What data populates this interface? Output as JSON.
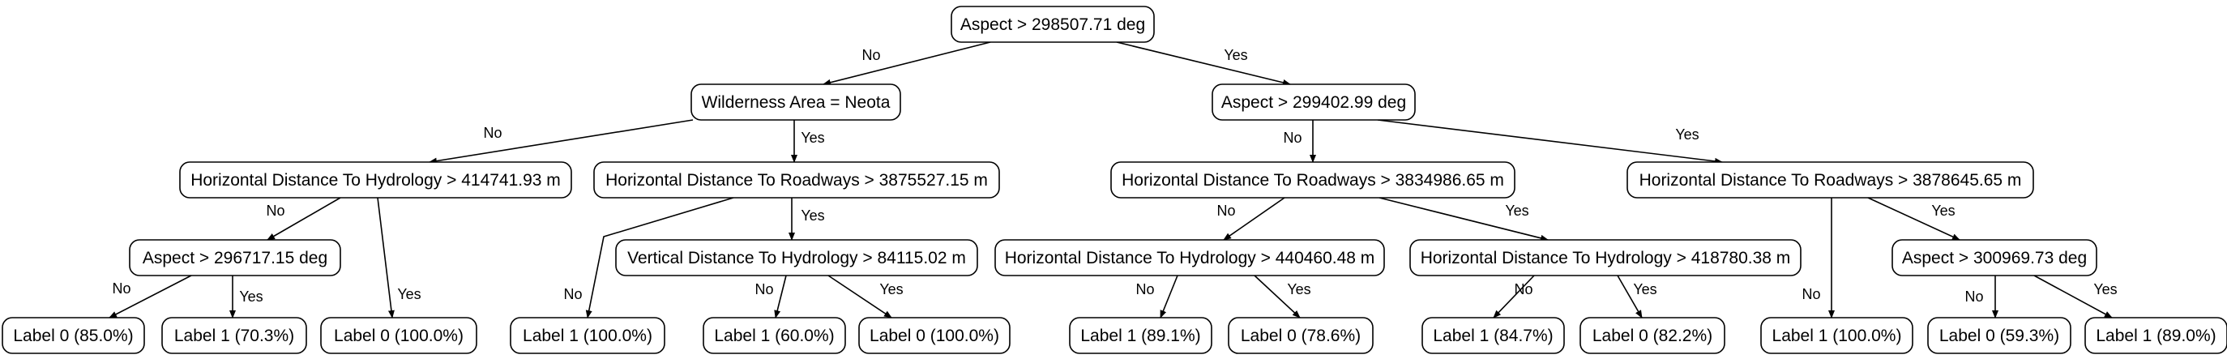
{
  "tree": {
    "nodes": [
      {
        "id": "root",
        "text": "Aspect > 298507.71 deg"
      },
      {
        "id": "l",
        "text": "Wilderness Area = Neota"
      },
      {
        "id": "r",
        "text": "Aspect > 299402.99 deg"
      },
      {
        "id": "ll",
        "text": "Horizontal Distance To Hydrology > 414741.93 m"
      },
      {
        "id": "lr",
        "text": "Horizontal Distance To Roadways > 3875527.15 m"
      },
      {
        "id": "rl",
        "text": "Horizontal Distance To Roadways > 3834986.65 m"
      },
      {
        "id": "rr",
        "text": "Horizontal Distance To Roadways > 3878645.65 m"
      },
      {
        "id": "lll",
        "text": "Aspect > 296717.15 deg"
      },
      {
        "id": "lrr",
        "text": "Vertical Distance To Hydrology > 84115.02 m"
      },
      {
        "id": "rll",
        "text": "Horizontal Distance To Hydrology > 440460.48 m"
      },
      {
        "id": "rlr",
        "text": "Horizontal Distance To Hydrology > 418780.38 m"
      },
      {
        "id": "rrr",
        "text": "Aspect > 300969.73 deg"
      },
      {
        "id": "leaf1",
        "text": "Label 0 (85.0%)"
      },
      {
        "id": "leaf2",
        "text": "Label 1 (70.3%)"
      },
      {
        "id": "leaf3",
        "text": "Label 0 (100.0%)"
      },
      {
        "id": "leaf4",
        "text": "Label 1 (100.0%)"
      },
      {
        "id": "leaf5",
        "text": "Label 1 (60.0%)"
      },
      {
        "id": "leaf6",
        "text": "Label 0 (100.0%)"
      },
      {
        "id": "leaf7",
        "text": "Label 1 (89.1%)"
      },
      {
        "id": "leaf8",
        "text": "Label 0 (78.6%)"
      },
      {
        "id": "leaf9",
        "text": "Label 1 (84.7%)"
      },
      {
        "id": "leaf10",
        "text": "Label 0 (82.2%)"
      },
      {
        "id": "leaf11",
        "text": "Label 1 (100.0%)"
      },
      {
        "id": "leaf12",
        "text": "Label 0 (59.3%)"
      },
      {
        "id": "leaf13",
        "text": "Label 1 (89.0%)"
      }
    ],
    "edges": [
      {
        "from": "root",
        "to": "l",
        "label": "No"
      },
      {
        "from": "root",
        "to": "r",
        "label": "Yes"
      },
      {
        "from": "l",
        "to": "ll",
        "label": "No"
      },
      {
        "from": "l",
        "to": "lr",
        "label": "Yes"
      },
      {
        "from": "r",
        "to": "rl",
        "label": "No"
      },
      {
        "from": "r",
        "to": "rr",
        "label": "Yes"
      },
      {
        "from": "ll",
        "to": "lll",
        "label": "No"
      },
      {
        "from": "ll",
        "to": "leaf3",
        "label": "Yes"
      },
      {
        "from": "lll",
        "to": "leaf1",
        "label": "No"
      },
      {
        "from": "lll",
        "to": "leaf2",
        "label": "Yes"
      },
      {
        "from": "lr",
        "to": "leaf4",
        "label": "No"
      },
      {
        "from": "lr",
        "to": "lrr",
        "label": "Yes"
      },
      {
        "from": "lrr",
        "to": "leaf5",
        "label": "No"
      },
      {
        "from": "lrr",
        "to": "leaf6",
        "label": "Yes"
      },
      {
        "from": "rl",
        "to": "rll",
        "label": "No"
      },
      {
        "from": "rl",
        "to": "rlr",
        "label": "Yes"
      },
      {
        "from": "rll",
        "to": "leaf7",
        "label": "No"
      },
      {
        "from": "rll",
        "to": "leaf8",
        "label": "Yes"
      },
      {
        "from": "rlr",
        "to": "leaf9",
        "label": "No"
      },
      {
        "from": "rlr",
        "to": "leaf10",
        "label": "Yes"
      },
      {
        "from": "rr",
        "to": "leaf11",
        "label": "No"
      },
      {
        "from": "rr",
        "to": "rrr",
        "label": "Yes"
      },
      {
        "from": "rrr",
        "to": "leaf12",
        "label": "No"
      },
      {
        "from": "rrr",
        "to": "leaf13",
        "label": "Yes"
      }
    ]
  }
}
